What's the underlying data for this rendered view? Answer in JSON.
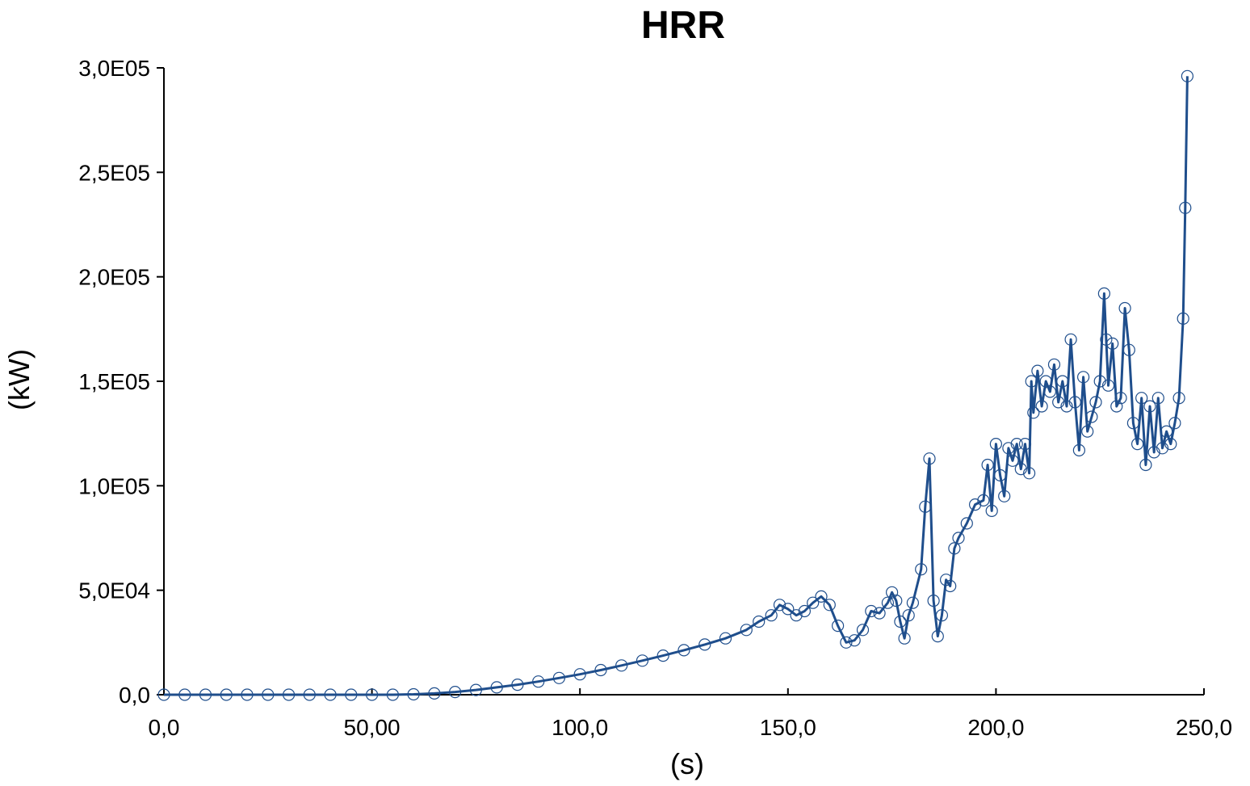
{
  "chart_data": {
    "type": "line",
    "title": "HRR",
    "xlabel": "(s)",
    "ylabel": "(kW)",
    "xlim": [
      0,
      250
    ],
    "ylim": [
      0,
      300000
    ],
    "x_ticks": [
      0,
      50,
      100,
      150,
      200,
      250
    ],
    "x_tick_labels": [
      "0,0",
      "50,00",
      "100,0",
      "150,0",
      "200,0",
      "250,0"
    ],
    "y_ticks": [
      0,
      50000,
      100000,
      150000,
      200000,
      250000,
      300000
    ],
    "y_tick_labels": [
      "0,0",
      "5,0E04",
      "1,0E05",
      "1,5E05",
      "2,0E05",
      "2,5E05",
      "3,0E05"
    ],
    "grid": false,
    "legend": "none",
    "series": [
      {
        "color": "#1f4e8c",
        "marker": "open-circle",
        "points": [
          [
            0,
            0
          ],
          [
            5,
            0
          ],
          [
            10,
            0
          ],
          [
            15,
            0
          ],
          [
            20,
            0
          ],
          [
            25,
            0
          ],
          [
            30,
            0
          ],
          [
            35,
            0
          ],
          [
            40,
            0
          ],
          [
            45,
            0
          ],
          [
            50,
            0
          ],
          [
            55,
            0
          ],
          [
            60,
            200
          ],
          [
            65,
            600
          ],
          [
            70,
            1300
          ],
          [
            75,
            2300
          ],
          [
            80,
            3500
          ],
          [
            85,
            4800
          ],
          [
            90,
            6300
          ],
          [
            95,
            8000
          ],
          [
            100,
            9800
          ],
          [
            105,
            11800
          ],
          [
            110,
            14000
          ],
          [
            115,
            16300
          ],
          [
            120,
            18700
          ],
          [
            125,
            21300
          ],
          [
            130,
            24000
          ],
          [
            135,
            27000
          ],
          [
            140,
            31000
          ],
          [
            143,
            35000
          ],
          [
            146,
            38000
          ],
          [
            148,
            43000
          ],
          [
            150,
            41000
          ],
          [
            152,
            38000
          ],
          [
            154,
            40000
          ],
          [
            156,
            44000
          ],
          [
            158,
            47000
          ],
          [
            160,
            43000
          ],
          [
            162,
            33000
          ],
          [
            164,
            25000
          ],
          [
            166,
            26000
          ],
          [
            168,
            31000
          ],
          [
            170,
            40000
          ],
          [
            172,
            39000
          ],
          [
            174,
            44000
          ],
          [
            175,
            49000
          ],
          [
            176,
            45000
          ],
          [
            177,
            35000
          ],
          [
            178,
            27000
          ],
          [
            179,
            38000
          ],
          [
            180,
            44000
          ],
          [
            182,
            60000
          ],
          [
            183,
            90000
          ],
          [
            184,
            113000
          ],
          [
            185,
            45000
          ],
          [
            186,
            28000
          ],
          [
            187,
            38000
          ],
          [
            188,
            55000
          ],
          [
            189,
            52000
          ],
          [
            190,
            70000
          ],
          [
            191,
            75000
          ],
          [
            193,
            82000
          ],
          [
            195,
            91000
          ],
          [
            197,
            93000
          ],
          [
            198,
            110000
          ],
          [
            199,
            88000
          ],
          [
            200,
            120000
          ],
          [
            201,
            105000
          ],
          [
            202,
            95000
          ],
          [
            203,
            118000
          ],
          [
            204,
            112000
          ],
          [
            205,
            120000
          ],
          [
            206,
            108000
          ],
          [
            207,
            120000
          ],
          [
            208,
            106000
          ],
          [
            208.5,
            150000
          ],
          [
            209,
            135000
          ],
          [
            210,
            155000
          ],
          [
            211,
            138000
          ],
          [
            212,
            150000
          ],
          [
            213,
            145000
          ],
          [
            214,
            158000
          ],
          [
            215,
            140000
          ],
          [
            216,
            150000
          ],
          [
            217,
            138000
          ],
          [
            218,
            170000
          ],
          [
            219,
            140000
          ],
          [
            220,
            117000
          ],
          [
            221,
            152000
          ],
          [
            222,
            126000
          ],
          [
            223,
            133000
          ],
          [
            224,
            140000
          ],
          [
            225,
            150000
          ],
          [
            226,
            192000
          ],
          [
            226.5,
            170000
          ],
          [
            227,
            148000
          ],
          [
            228,
            168000
          ],
          [
            229,
            138000
          ],
          [
            230,
            142000
          ],
          [
            231,
            185000
          ],
          [
            232,
            165000
          ],
          [
            233,
            130000
          ],
          [
            234,
            120000
          ],
          [
            235,
            142000
          ],
          [
            236,
            110000
          ],
          [
            237,
            138000
          ],
          [
            238,
            116000
          ],
          [
            239,
            142000
          ],
          [
            240,
            118000
          ],
          [
            241,
            126000
          ],
          [
            242,
            120000
          ],
          [
            243,
            130000
          ],
          [
            244,
            142000
          ],
          [
            245,
            180000
          ],
          [
            245.5,
            233000
          ],
          [
            246,
            296000
          ]
        ]
      }
    ]
  }
}
